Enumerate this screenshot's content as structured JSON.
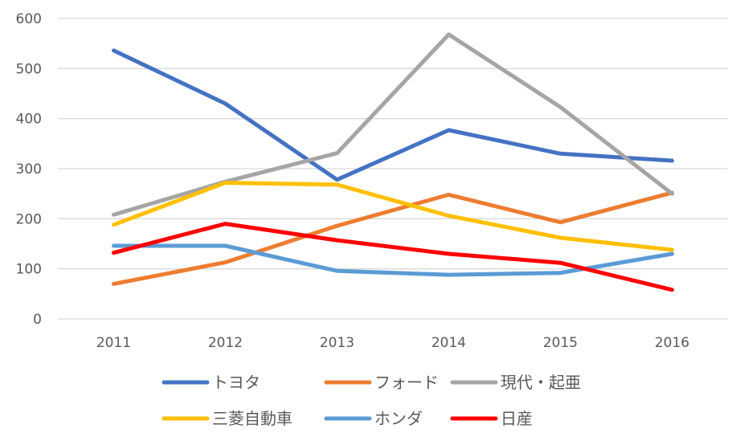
{
  "chart_data": {
    "type": "line",
    "categories": [
      "2011",
      "2012",
      "2013",
      "2014",
      "2015",
      "2016"
    ],
    "ylim": [
      0,
      600
    ],
    "yticks": [
      0,
      100,
      200,
      300,
      400,
      500,
      600
    ],
    "grid": true,
    "legend_position": "bottom",
    "series": [
      {
        "name": "トヨタ",
        "color": "#4472C4",
        "values": [
          536,
          430,
          278,
          377,
          330,
          316
        ]
      },
      {
        "name": "フォード",
        "color": "#ED7D31",
        "values": [
          70,
          113,
          186,
          248,
          193,
          252
        ]
      },
      {
        "name": "現代・起亜",
        "color": "#A5A5A5",
        "values": [
          208,
          274,
          331,
          568,
          423,
          250
        ]
      },
      {
        "name": "三菱自動車",
        "color": "#FFC000",
        "values": [
          188,
          272,
          268,
          206,
          162,
          138
        ]
      },
      {
        "name": "ホンダ",
        "color": "#5B9BD5",
        "values": [
          146,
          146,
          96,
          88,
          92,
          130
        ]
      },
      {
        "name": "日産",
        "color": "#FF0000",
        "values": [
          132,
          190,
          157,
          130,
          112,
          58
        ]
      }
    ]
  }
}
